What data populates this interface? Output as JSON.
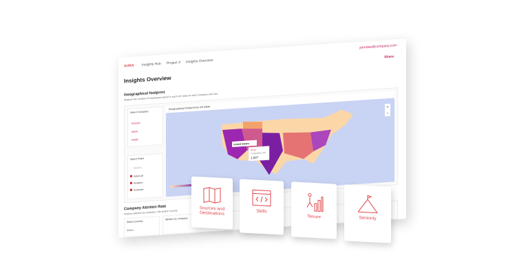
{
  "nav": {
    "logo": "AURA",
    "breadcrumbs": [
      "Insights Hub",
      "Project X",
      "Insights Overview"
    ],
    "user": "johndoe@company.com",
    "share": "Share"
  },
  "page_title": "Insights Overview",
  "geo": {
    "title": "Geographical footprint",
    "subtitle": "Analyze the number of employees based in each US state for each company and role.",
    "company_label": "Select Company",
    "companies": [
      "Amazon",
      "Apple",
      "Netflix"
    ],
    "roles_label": "Select Roles",
    "search": "Search...",
    "roles": [
      "Select all",
      "Analytics",
      "Customer"
    ],
    "map_title": "Geographical Footprint by US State",
    "country": "United States",
    "tooltip": {
      "state": "Texas",
      "metric": "# Employees count",
      "value": "1,547"
    }
  },
  "attrition": {
    "title": "Company Attrition Rate",
    "subtitle": "Analyze attrition by company, role and/or country.",
    "country_label": "Select Country",
    "select": "Select...",
    "chart_title": "Attrition by company"
  },
  "cards": [
    "Sources and Destinations",
    "Skills",
    "Tenure",
    "Seniority"
  ]
}
